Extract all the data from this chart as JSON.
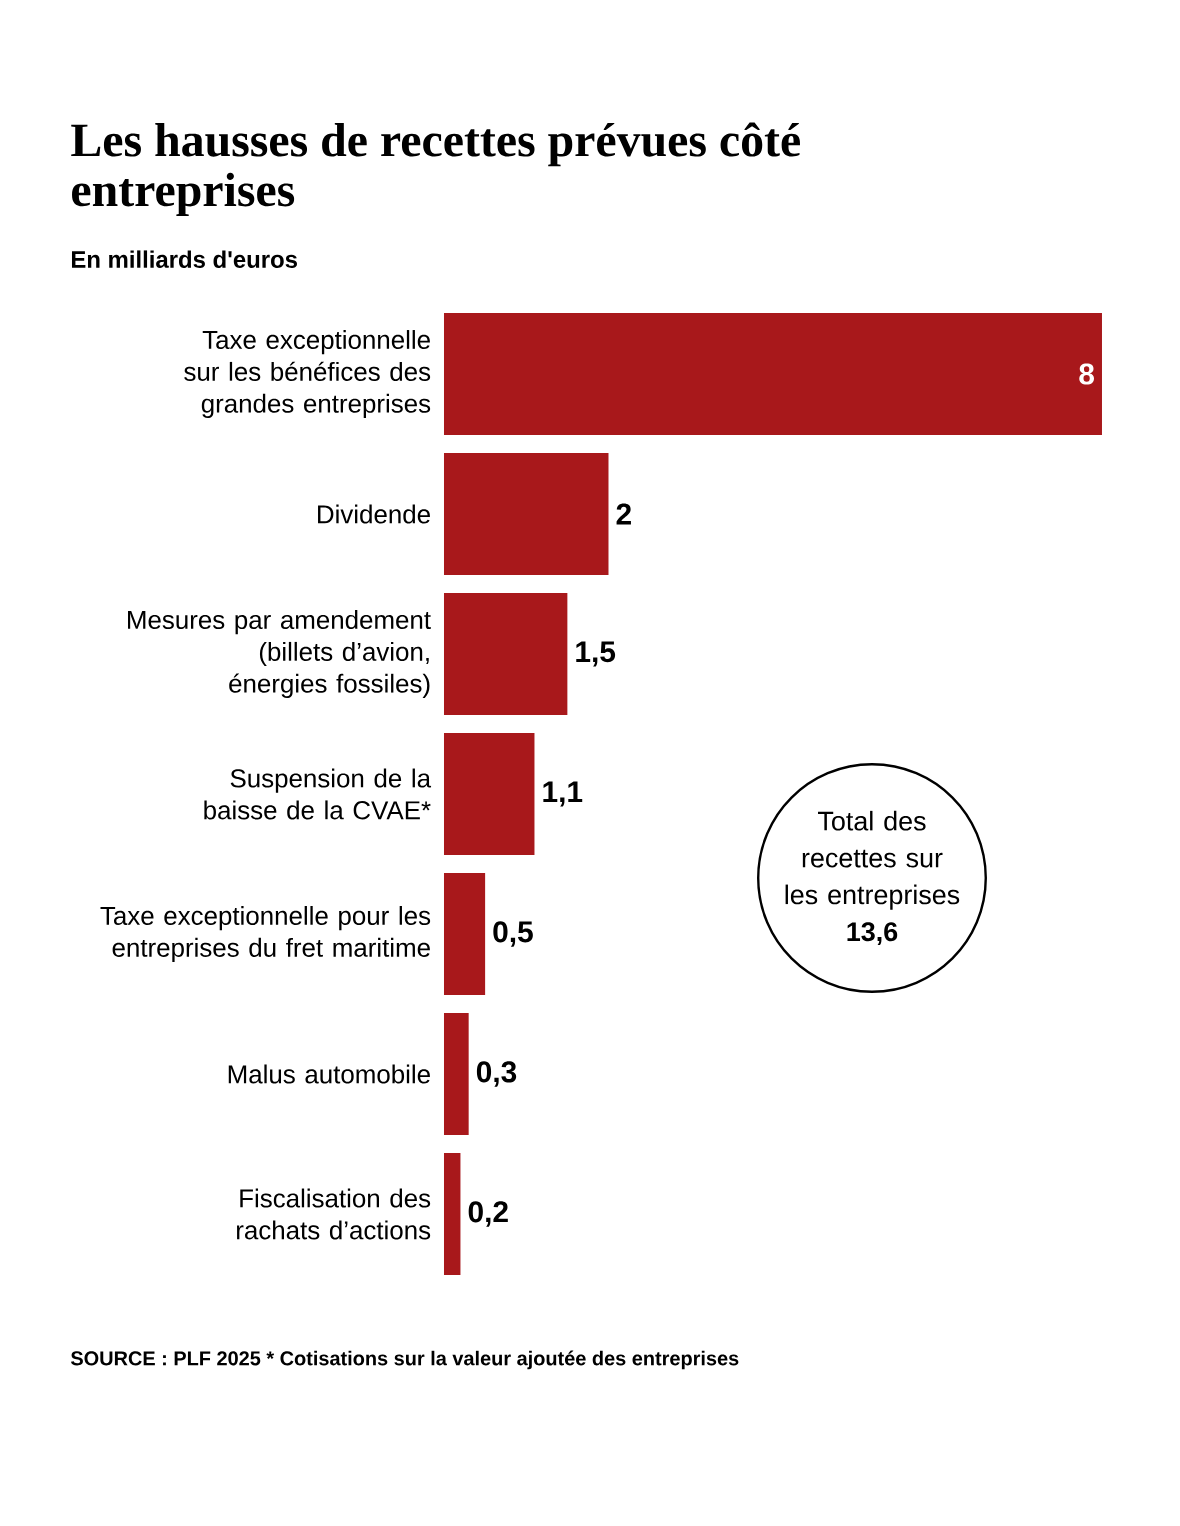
{
  "chart_data": {
    "type": "bar",
    "orientation": "horizontal",
    "title": "Les hausses de recettes prévues côté entreprises",
    "subtitle": "En milliards d'euros",
    "categories": [
      "Taxe exceptionnelle sur les bénéfices des grandes entreprises",
      "Dividende",
      "Mesures par amendement (billets d’avion, énergies fossiles)",
      "Suspension de la baisse de la CVAE*",
      "Taxe exceptionnelle pour les entreprises du fret maritime",
      "Malus automobile",
      "Fiscalisation des rachats d’actions"
    ],
    "values": [
      8,
      2,
      1.5,
      1.1,
      0.5,
      0.3,
      0.2
    ],
    "value_labels": [
      "8",
      "2",
      "1,5",
      "1,1",
      "0,5",
      "0,3",
      "0,2"
    ],
    "color": "#a8181b",
    "xlim": [
      0,
      8
    ],
    "tick_labels": "y",
    "annotations": [
      "Total des recettes sur les entreprises **13,6**",
      "SOURCE : PLF 2025 * Cotisations sur la valeur ajoutée des entreprises"
    ]
  }
}
